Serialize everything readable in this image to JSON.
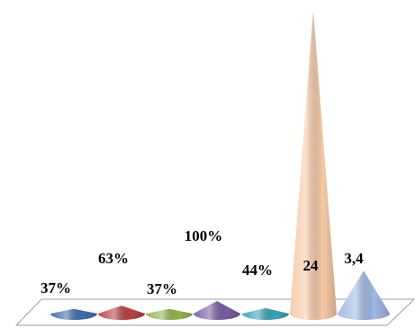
{
  "chart_data": {
    "type": "bar",
    "shape": "cone",
    "categories": [
      "",
      "",
      "",
      "",
      "",
      "",
      ""
    ],
    "values": [
      0.37,
      0.63,
      0.37,
      1.0,
      0.44,
      24,
      3.4
    ],
    "data_labels": [
      "37%",
      "63%",
      "37%",
      "100%",
      "44%",
      "24",
      "3,4"
    ],
    "colors": [
      "#3f6bb0",
      "#b9403e",
      "#93b448",
      "#7a5ba4",
      "#3aa3b8",
      "#f6c9a6",
      "#9fb8e3"
    ],
    "title": "",
    "xlabel": "",
    "ylabel": "",
    "ylim": [
      0,
      24
    ],
    "grid": false,
    "legend": "none"
  }
}
